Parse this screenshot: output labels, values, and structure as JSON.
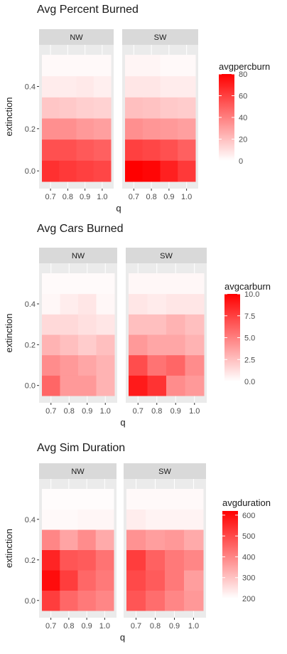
{
  "colors": {
    "panel_bg": "#ebebeb",
    "strip_bg": "#d9d9d9",
    "grid": "#ffffff",
    "text": "#1a1a1a",
    "axis_text": "#4d4d4d",
    "low": "#ffffff",
    "high": "#ff0000"
  },
  "chart_data": [
    {
      "type": "heatmap",
      "title": "Avg Percent Burned",
      "xlabel": "q",
      "ylabel": "extinction",
      "facets": [
        "NW",
        "SW"
      ],
      "x": [
        "0.7",
        "0.8",
        "0.9",
        "1.0"
      ],
      "y": [
        0.0,
        0.1,
        0.2,
        0.3,
        0.4,
        0.5
      ],
      "ytick_labels": [
        "0.0",
        "0.2",
        "0.4"
      ],
      "legend_title": "avgpercburn",
      "legend_ticks": [
        "0",
        "20",
        "40",
        "60",
        "80"
      ],
      "limits": [
        0,
        80
      ],
      "values": {
        "NW": [
          [
            65,
            62,
            60,
            58
          ],
          [
            55,
            55,
            52,
            50
          ],
          [
            35,
            35,
            32,
            30
          ],
          [
            18,
            17,
            15,
            14
          ],
          [
            6,
            6,
            7,
            5
          ],
          [
            2,
            2,
            2,
            2
          ]
        ],
        "SW": [
          [
            80,
            78,
            70,
            62
          ],
          [
            60,
            58,
            55,
            50
          ],
          [
            35,
            33,
            32,
            30
          ],
          [
            20,
            19,
            17,
            16
          ],
          [
            8,
            8,
            6,
            6
          ],
          [
            3,
            3,
            2,
            2
          ]
        ]
      }
    },
    {
      "type": "heatmap",
      "title": "Avg Cars Burned",
      "xlabel": "q",
      "ylabel": "extinction",
      "facets": [
        "NW",
        "SW"
      ],
      "x": [
        "0.7",
        "0.8",
        "0.9",
        "1.0"
      ],
      "y": [
        0.0,
        0.1,
        0.2,
        0.3,
        0.4,
        0.5
      ],
      "ytick_labels": [
        "0.0",
        "0.2",
        "0.4"
      ],
      "legend_title": "avgcarburn",
      "legend_ticks": [
        "0.0",
        "2.5",
        "5.0",
        "7.5",
        "10.0"
      ],
      "limits": [
        0,
        10
      ],
      "values": {
        "NW": [
          [
            6.0,
            4.0,
            4.0,
            3.0
          ],
          [
            4.5,
            4.0,
            3.5,
            3.0
          ],
          [
            3.0,
            2.5,
            2.0,
            2.5
          ],
          [
            1.5,
            1.5,
            1.2,
            1.0
          ],
          [
            0.3,
            0.7,
            1.0,
            0.3
          ],
          [
            0.2,
            0.2,
            0.2,
            0.2
          ]
        ],
        "SW": [
          [
            9.0,
            8.0,
            4.5,
            4.0
          ],
          [
            7.0,
            5.5,
            6.0,
            4.5
          ],
          [
            4.0,
            3.5,
            3.5,
            3.0
          ],
          [
            2.5,
            2.5,
            3.0,
            2.5
          ],
          [
            1.0,
            0.8,
            1.0,
            1.0
          ],
          [
            0.3,
            0.3,
            0.3,
            0.3
          ]
        ]
      }
    },
    {
      "type": "heatmap",
      "title": "Avg Sim Duration",
      "xlabel": "q",
      "ylabel": "extinction",
      "facets": [
        "NW",
        "SW"
      ],
      "x": [
        "0.7",
        "0.8",
        "0.9",
        "1.0"
      ],
      "y": [
        0.0,
        0.1,
        0.2,
        0.3,
        0.4,
        0.5
      ],
      "ytick_labels": [
        "0.0",
        "0.2",
        "0.4"
      ],
      "legend_title": "avgduration",
      "legend_ticks": [
        "200",
        "300",
        "400",
        "500",
        "600"
      ],
      "limits": [
        200,
        620
      ],
      "values": {
        "NW": [
          [
            520,
            450,
            420,
            400
          ],
          [
            600,
            520,
            450,
            420
          ],
          [
            560,
            480,
            470,
            430
          ],
          [
            400,
            350,
            390,
            340
          ],
          [
            210,
            210,
            215,
            215
          ],
          [
            205,
            205,
            205,
            205
          ]
        ],
        "SW": [
          [
            480,
            440,
            400,
            370
          ],
          [
            500,
            470,
            420,
            360
          ],
          [
            520,
            460,
            420,
            400
          ],
          [
            380,
            360,
            370,
            340
          ],
          [
            230,
            220,
            220,
            220
          ],
          [
            210,
            210,
            210,
            210
          ]
        ]
      }
    }
  ]
}
